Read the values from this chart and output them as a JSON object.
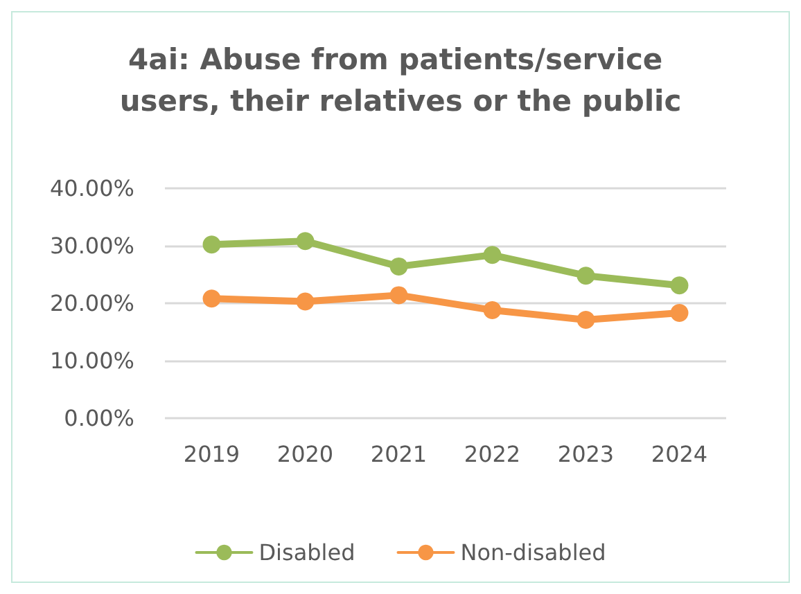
{
  "chart_data": {
    "type": "line",
    "title": "4ai: Abuse from patients/service users, their relatives or the public",
    "categories": [
      "2019",
      "2020",
      "2021",
      "2022",
      "2023",
      "2024"
    ],
    "series": [
      {
        "name": "Disabled",
        "color": "#9bbb59",
        "values": [
          30.2,
          30.8,
          26.4,
          28.4,
          24.8,
          23.1
        ]
      },
      {
        "name": "Non-disabled",
        "color": "#f79646",
        "values": [
          20.8,
          20.3,
          21.4,
          18.8,
          17.1,
          18.3
        ]
      }
    ],
    "ylim": [
      0,
      40
    ],
    "yticks": [
      {
        "value": 0,
        "label": "0.00%"
      },
      {
        "value": 10,
        "label": "10.00%"
      },
      {
        "value": 20,
        "label": "20.00%"
      },
      {
        "value": 30,
        "label": "30.00%"
      },
      {
        "value": 40,
        "label": "40.00%"
      }
    ],
    "grid": "y",
    "legend": "bottom",
    "marker": "circle",
    "line_style": "solid"
  }
}
